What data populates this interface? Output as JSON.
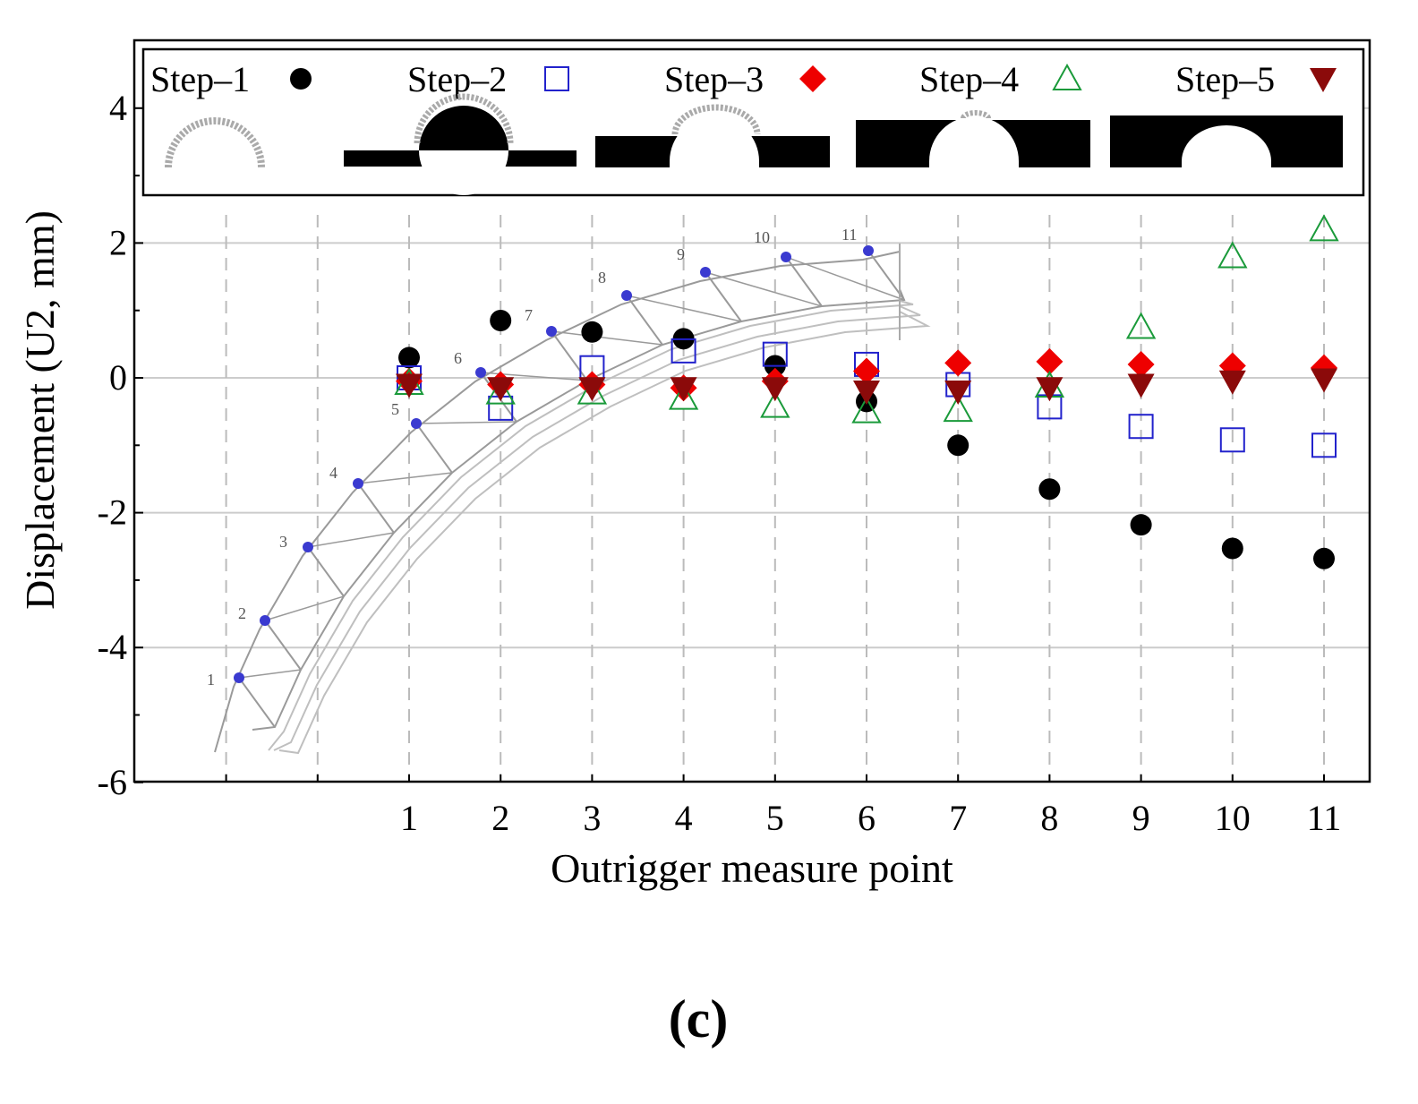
{
  "chart_data": {
    "type": "scatter",
    "title": "",
    "xlabel": "Outrigger measure point",
    "ylabel": "Displacement (U2, mm)",
    "x": [
      1,
      2,
      3,
      4,
      5,
      6,
      7,
      8,
      9,
      10,
      11
    ],
    "xlim": [
      -2,
      11.5
    ],
    "ylim": [
      -6,
      5
    ],
    "yticks": [
      -6,
      -4,
      -2,
      0,
      2,
      4
    ],
    "yticklabels": [
      "-6",
      "-4",
      "-2",
      "0",
      "2",
      "4"
    ],
    "xticklabels": [
      "1",
      "2",
      "3",
      "4",
      "5",
      "6",
      "7",
      "8",
      "9",
      "10",
      "11"
    ],
    "grid": true,
    "series": [
      {
        "name": "Step–1",
        "marker": "filled-circle",
        "color": "#000000",
        "values": [
          0.3,
          0.85,
          0.68,
          0.58,
          0.18,
          -0.35,
          -1.0,
          -1.65,
          -2.18,
          -2.53,
          -2.68
        ]
      },
      {
        "name": "Step–2",
        "marker": "open-square",
        "color": "#2222cc",
        "values": [
          0.0,
          -0.45,
          0.15,
          0.4,
          0.35,
          0.2,
          -0.1,
          -0.43,
          -0.72,
          -0.92,
          -1.0
        ]
      },
      {
        "name": "Step–3",
        "marker": "filled-diamond",
        "color": "#ee0000",
        "values": [
          -0.05,
          -0.1,
          -0.1,
          -0.15,
          -0.05,
          0.1,
          0.22,
          0.24,
          0.2,
          0.18,
          0.15
        ]
      },
      {
        "name": "Step–4",
        "marker": "open-triangle",
        "color": "#1a9a3a",
        "values": [
          -0.08,
          -0.22,
          -0.22,
          -0.3,
          -0.42,
          -0.5,
          -0.48,
          -0.12,
          0.75,
          1.8,
          2.2
        ]
      },
      {
        "name": "Step–5",
        "marker": "filled-triangle-down",
        "color": "#8b0a0a",
        "values": [
          -0.1,
          -0.15,
          -0.15,
          -0.15,
          -0.15,
          -0.2,
          -0.2,
          -0.15,
          -0.1,
          -0.05,
          -0.02
        ]
      }
    ],
    "legend": {
      "placement": "top"
    },
    "inset": {
      "description": "outrigger arch with measure points",
      "point_labels": [
        "1",
        "2",
        "3",
        "4",
        "5",
        "6",
        "7",
        "8",
        "9",
        "10",
        "11"
      ],
      "point_color": "#3a3ad0"
    }
  },
  "caption": "(c)",
  "colors": {
    "grid": "#cccccc",
    "axis": "#000000"
  }
}
